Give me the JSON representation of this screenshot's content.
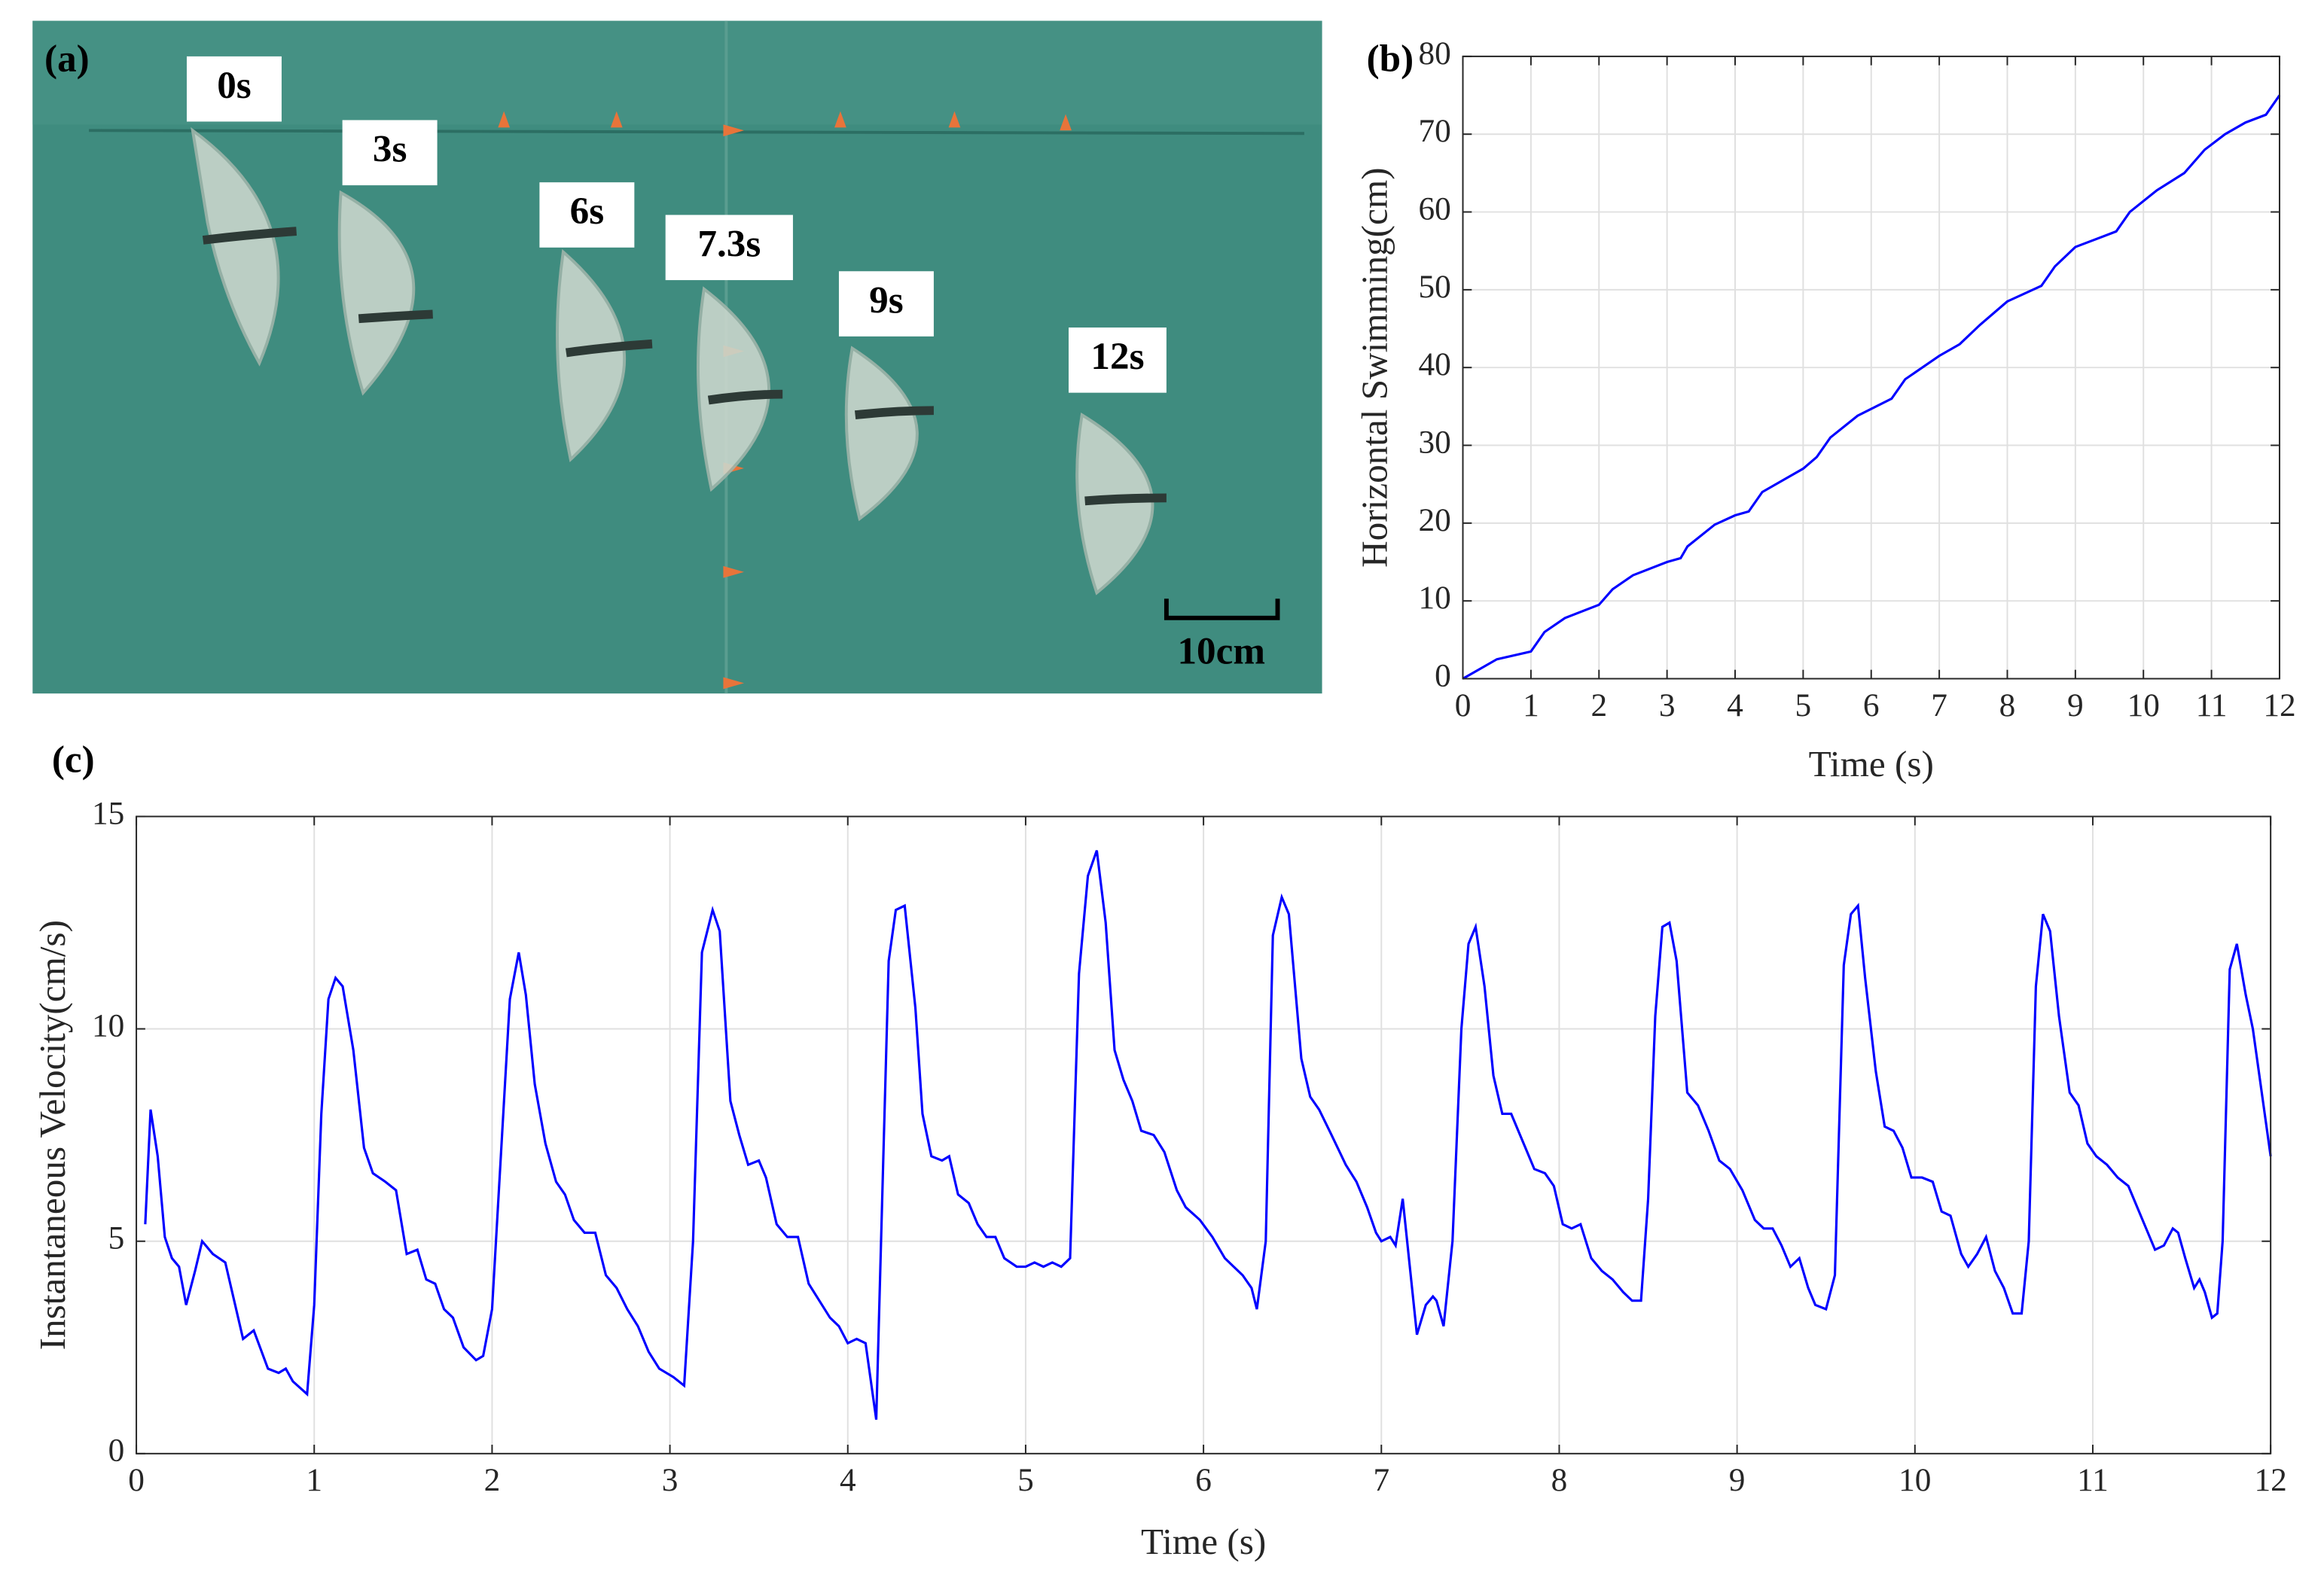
{
  "panel_a": {
    "label": "(a)",
    "time_labels": [
      "0s",
      "3s",
      "6s",
      "7.3s",
      "9s",
      "12s"
    ],
    "scale_label": "10cm"
  },
  "chart_data": [
    {
      "type": "line",
      "panel_label": "(b)",
      "x_label": "Time (s)",
      "y_label": "Horizontal Swimming(cm)",
      "xlim": [
        0,
        12
      ],
      "xticks": [
        0,
        1,
        2,
        3,
        4,
        5,
        6,
        7,
        8,
        9,
        10,
        11,
        12
      ],
      "ylim": [
        0,
        80
      ],
      "yticks": [
        0,
        10,
        20,
        30,
        40,
        50,
        60,
        70,
        80
      ],
      "grid": true,
      "series": [
        {
          "color": "#0000ff",
          "x": [
            0,
            0.5,
            1,
            1.2,
            1.5,
            2,
            2.2,
            2.5,
            3,
            3.2,
            3.3,
            3.7,
            4,
            4.2,
            4.4,
            5,
            5.2,
            5.4,
            5.8,
            6.3,
            6.5,
            7,
            7.3,
            7.6,
            8,
            8.5,
            8.7,
            9,
            9.6,
            9.8,
            10.2,
            10.6,
            10.9,
            11.2,
            11.5,
            11.8,
            12
          ],
          "values": [
            0,
            2.5,
            3.5,
            6,
            7.8,
            9.5,
            11.5,
            13.3,
            15,
            15.5,
            17,
            19.8,
            21,
            21.5,
            24,
            27,
            28.5,
            31,
            33.8,
            36,
            38.5,
            41.5,
            43,
            45.5,
            48.5,
            50.5,
            53,
            55.5,
            57.5,
            60,
            62.8,
            65,
            68,
            70,
            71.5,
            72.5,
            75
          ]
        }
      ]
    },
    {
      "type": "line",
      "panel_label": "(c)",
      "x_label": "Time (s)",
      "y_label": "Instantaneous Velocity(cm/s)",
      "xlim": [
        0,
        12
      ],
      "xticks": [
        0,
        1,
        2,
        3,
        4,
        5,
        6,
        7,
        8,
        9,
        10,
        11,
        12
      ],
      "ylim": [
        0,
        15
      ],
      "yticks": [
        0,
        5,
        10,
        15
      ],
      "grid": true,
      "series": [
        {
          "color": "#0000ff",
          "x": [
            0.05,
            0.08,
            0.12,
            0.16,
            0.2,
            0.24,
            0.28,
            0.33,
            0.37,
            0.43,
            0.5,
            0.55,
            0.6,
            0.66,
            0.74,
            0.8,
            0.84,
            0.88,
            0.96,
            1.0,
            1.04,
            1.08,
            1.12,
            1.16,
            1.22,
            1.28,
            1.33,
            1.4,
            1.46,
            1.52,
            1.58,
            1.63,
            1.68,
            1.73,
            1.78,
            1.84,
            1.91,
            1.95,
            2.0,
            2.1,
            2.15,
            2.19,
            2.24,
            2.3,
            2.36,
            2.41,
            2.46,
            2.52,
            2.58,
            2.64,
            2.7,
            2.76,
            2.82,
            2.88,
            2.94,
            3.02,
            3.08,
            3.13,
            3.18,
            3.24,
            3.28,
            3.34,
            3.39,
            3.44,
            3.5,
            3.54,
            3.6,
            3.66,
            3.72,
            3.78,
            3.84,
            3.9,
            3.95,
            4.0,
            4.05,
            4.1,
            4.16,
            4.2,
            4.23,
            4.27,
            4.32,
            4.38,
            4.42,
            4.47,
            4.53,
            4.57,
            4.62,
            4.68,
            4.73,
            4.78,
            4.83,
            4.88,
            4.95,
            5.0,
            5.05,
            5.1,
            5.15,
            5.2,
            5.25,
            5.3,
            5.35,
            5.4,
            5.45,
            5.5,
            5.55,
            5.6,
            5.65,
            5.72,
            5.78,
            5.85,
            5.9,
            5.98,
            6.05,
            6.12,
            6.17,
            6.22,
            6.27,
            6.3,
            6.35,
            6.39,
            6.44,
            6.48,
            6.55,
            6.6,
            6.65,
            6.72,
            6.8,
            6.86,
            6.92,
            6.97,
            7.0,
            7.05,
            7.08,
            7.12,
            7.2,
            7.25,
            7.29,
            7.31,
            7.35,
            7.4,
            7.45,
            7.49,
            7.53,
            7.58,
            7.63,
            7.68,
            7.73,
            7.8,
            7.86,
            7.92,
            7.97,
            8.02,
            8.07,
            8.12,
            8.18,
            8.24,
            8.3,
            8.36,
            8.41,
            8.46,
            8.5,
            8.54,
            8.58,
            8.62,
            8.66,
            8.72,
            8.78,
            8.84,
            8.9,
            8.96,
            9.03,
            9.1,
            9.15,
            9.2,
            9.25,
            9.3,
            9.35,
            9.4,
            9.44,
            9.5,
            9.55,
            9.6,
            9.64,
            9.68,
            9.72,
            9.78,
            9.83,
            9.88,
            9.93,
            9.98,
            10.04,
            10.1,
            10.15,
            10.2,
            10.26,
            10.3,
            10.35,
            10.4,
            10.45,
            10.5,
            10.55,
            10.6,
            10.64,
            10.68,
            10.72,
            10.76,
            10.81,
            10.87,
            10.92,
            10.97,
            11.02,
            11.08,
            11.14,
            11.2,
            11.25,
            11.3,
            11.35,
            11.4,
            11.45,
            11.48,
            11.52,
            11.57,
            11.6,
            11.63,
            11.67,
            11.7,
            11.73,
            11.77,
            11.81,
            11.86,
            11.9,
            11.95,
            12.0
          ],
          "values": [
            5.4,
            8.1,
            7.0,
            5.1,
            4.6,
            4.4,
            3.5,
            4.3,
            5.0,
            4.7,
            4.5,
            3.6,
            2.7,
            2.9,
            2.0,
            1.9,
            2.0,
            1.7,
            1.4,
            3.5,
            8.0,
            10.7,
            11.2,
            11.0,
            9.5,
            7.2,
            6.6,
            6.4,
            6.2,
            4.7,
            4.8,
            4.1,
            4.0,
            3.4,
            3.2,
            2.5,
            2.2,
            2.3,
            3.4,
            10.7,
            11.8,
            10.8,
            8.7,
            7.3,
            6.4,
            6.1,
            5.5,
            5.2,
            5.2,
            4.2,
            3.9,
            3.4,
            3.0,
            2.4,
            2.0,
            1.8,
            1.6,
            5.0,
            11.8,
            12.8,
            12.3,
            8.3,
            7.5,
            6.8,
            6.9,
            6.5,
            5.4,
            5.1,
            5.1,
            4.0,
            3.6,
            3.2,
            3.0,
            2.6,
            2.7,
            2.6,
            0.8,
            7.0,
            11.6,
            12.8,
            12.9,
            10.5,
            8.0,
            7.0,
            6.9,
            7.0,
            6.1,
            5.9,
            5.4,
            5.1,
            5.1,
            4.6,
            4.4,
            4.4,
            4.5,
            4.4,
            4.5,
            4.4,
            4.6,
            11.3,
            13.6,
            14.2,
            12.5,
            9.5,
            8.8,
            8.3,
            7.6,
            7.5,
            7.1,
            6.2,
            5.8,
            5.5,
            5.1,
            4.6,
            4.4,
            4.2,
            3.9,
            3.4,
            5.0,
            12.2,
            13.1,
            12.7,
            9.3,
            8.4,
            8.1,
            7.5,
            6.8,
            6.4,
            5.8,
            5.2,
            5.0,
            5.1,
            4.9,
            6.0,
            2.8,
            3.5,
            3.7,
            3.6,
            3.0,
            5.0,
            10.0,
            12.0,
            12.4,
            11.0,
            8.9,
            8.0,
            8.0,
            7.3,
            6.7,
            6.6,
            6.3,
            5.4,
            5.3,
            5.4,
            4.6,
            4.3,
            4.1,
            3.8,
            3.6,
            3.6,
            6.0,
            10.3,
            12.4,
            12.5,
            11.6,
            8.5,
            8.2,
            7.6,
            6.9,
            6.7,
            6.2,
            5.5,
            5.3,
            5.3,
            4.9,
            4.4,
            4.6,
            3.9,
            3.5,
            3.4,
            4.2,
            11.5,
            12.7,
            12.9,
            11.2,
            9.0,
            7.7,
            7.6,
            7.2,
            6.5,
            6.5,
            6.4,
            5.7,
            5.6,
            4.7,
            4.4,
            4.7,
            5.1,
            4.3,
            3.9,
            3.3,
            3.3,
            5.0,
            11.0,
            12.7,
            12.3,
            10.3,
            8.5,
            8.2,
            7.3,
            7.0,
            6.8,
            6.5,
            6.3,
            5.8,
            5.3,
            4.8,
            4.9,
            5.3,
            5.2,
            4.6,
            3.9,
            4.1,
            3.8,
            3.2,
            3.3,
            5.0,
            11.4,
            12.0,
            10.8,
            10.0,
            8.5,
            7.0
          ]
        }
      ]
    }
  ]
}
